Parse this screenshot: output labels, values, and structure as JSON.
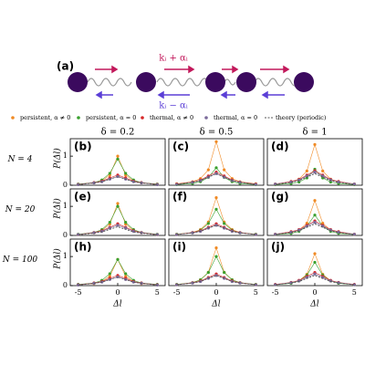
{
  "diagram": {
    "label": "(a)",
    "upper_rate": "kᵢ + αᵢ",
    "lower_rate": "kᵢ − αᵢ"
  },
  "legend": [
    {
      "name": "persistent, α ≠ 0",
      "color": "#f08a24",
      "style": "marker"
    },
    {
      "name": "persistent, α = 0",
      "color": "#3aa02e",
      "style": "marker"
    },
    {
      "name": "thermal, α ≠ 0",
      "color": "#d62728",
      "style": "marker"
    },
    {
      "name": "thermal, α = 0",
      "color": "#7b6a9b",
      "style": "marker"
    },
    {
      "name": "theory (periodic)",
      "color": "#555555",
      "style": "dashed"
    }
  ],
  "chart_data": [
    {
      "type": "line",
      "label": "(b)",
      "title": "δ = 0.2",
      "row_label": "N = 4",
      "ylabel": "P(Δl)",
      "xlim": [
        -6,
        6
      ],
      "ylim": [
        0,
        1.6
      ],
      "yticks": [
        0,
        1
      ],
      "x": [
        -5,
        -3,
        -2,
        -1,
        0,
        1,
        2,
        3,
        5
      ],
      "series": [
        {
          "values": [
            0.03,
            0.08,
            0.15,
            0.35,
            1,
            0.35,
            0.15,
            0.08,
            0.03
          ]
        },
        {
          "values": [
            0.04,
            0.09,
            0.18,
            0.41,
            0.9,
            0.41,
            0.18,
            0.09,
            0.04
          ]
        },
        {
          "values": [
            0.03,
            0.09,
            0.14,
            0.25,
            0.35,
            0.25,
            0.14,
            0.09,
            0.03
          ]
        },
        {
          "values": [
            0.02,
            0.08,
            0.12,
            0.21,
            0.3,
            0.21,
            0.12,
            0.08,
            0.02
          ]
        },
        {
          "values": [
            0.02,
            0.08,
            0.12,
            0.21,
            0.3,
            0.21,
            0.12,
            0.08,
            0.02
          ]
        }
      ]
    },
    {
      "type": "line",
      "label": "(c)",
      "title": "δ = 0.5",
      "xlim": [
        -6,
        6
      ],
      "ylim": [
        0,
        1.6
      ],
      "x": [
        -5,
        -3,
        -2,
        -1,
        0,
        1,
        2,
        3,
        5
      ],
      "series": [
        {
          "values": [
            0.05,
            0.12,
            0.23,
            0.53,
            1.5,
            0.53,
            0.23,
            0.12,
            0.05
          ]
        },
        {
          "values": [
            0.02,
            0.06,
            0.12,
            0.27,
            0.6,
            0.27,
            0.12,
            0.06,
            0.02
          ]
        },
        {
          "values": [
            0.04,
            0.11,
            0.18,
            0.32,
            0.45,
            0.32,
            0.18,
            0.11,
            0.04
          ]
        },
        {
          "values": [
            0.03,
            0.1,
            0.16,
            0.28,
            0.4,
            0.28,
            0.16,
            0.1,
            0.03
          ]
        },
        {
          "values": [
            0.03,
            0.1,
            0.16,
            0.28,
            0.4,
            0.28,
            0.16,
            0.1,
            0.03
          ]
        }
      ]
    },
    {
      "type": "line",
      "label": "(d)",
      "title": "δ = 1",
      "xlim": [
        -6,
        6
      ],
      "ylim": [
        0,
        1.6
      ],
      "x": [
        -5,
        -3,
        -2,
        -1,
        0,
        1,
        2,
        3,
        5
      ],
      "series": [
        {
          "values": [
            0.04,
            0.11,
            0.21,
            0.49,
            1.4,
            0.49,
            0.21,
            0.11,
            0.04
          ]
        },
        {
          "values": [
            0.02,
            0.06,
            0.11,
            0.25,
            0.55,
            0.25,
            0.11,
            0.06,
            0.02
          ]
        },
        {
          "values": [
            0.04,
            0.13,
            0.2,
            0.35,
            0.5,
            0.35,
            0.2,
            0.13,
            0.04
          ]
        },
        {
          "values": [
            0.04,
            0.11,
            0.18,
            0.32,
            0.45,
            0.32,
            0.18,
            0.11,
            0.04
          ]
        },
        {
          "values": [
            0.03,
            0.1,
            0.16,
            0.28,
            0.4,
            0.28,
            0.16,
            0.1,
            0.03
          ]
        }
      ]
    },
    {
      "type": "line",
      "label": "(e)",
      "row_label": "N = 20",
      "ylabel": "P(Δl)",
      "xlim": [
        -6,
        6
      ],
      "ylim": [
        0,
        1.6
      ],
      "yticks": [
        0,
        1
      ],
      "x": [
        -5,
        -3,
        -2,
        -1,
        0,
        1,
        2,
        3,
        5
      ],
      "series": [
        {
          "values": [
            0.03,
            0.09,
            0.17,
            0.39,
            1.1,
            0.39,
            0.17,
            0.09,
            0.03
          ]
        },
        {
          "values": [
            0.04,
            0.1,
            0.2,
            0.45,
            1,
            0.45,
            0.2,
            0.1,
            0.04
          ]
        },
        {
          "values": [
            0.03,
            0.1,
            0.16,
            0.28,
            0.4,
            0.28,
            0.16,
            0.1,
            0.03
          ]
        },
        {
          "values": [
            0.03,
            0.09,
            0.14,
            0.25,
            0.35,
            0.25,
            0.14,
            0.09,
            0.03
          ]
        },
        {
          "values": [
            0.02,
            0.08,
            0.12,
            0.21,
            0.3,
            0.21,
            0.12,
            0.08,
            0.02
          ]
        }
      ]
    },
    {
      "type": "line",
      "label": "(f)",
      "xlim": [
        -6,
        6
      ],
      "ylim": [
        0,
        1.6
      ],
      "x": [
        -5,
        -3,
        -2,
        -1,
        0,
        1,
        2,
        3,
        5
      ],
      "series": [
        {
          "values": [
            0.04,
            0.1,
            0.2,
            0.46,
            1.3,
            0.46,
            0.2,
            0.1,
            0.04
          ]
        },
        {
          "values": [
            0.04,
            0.09,
            0.18,
            0.41,
            0.9,
            0.41,
            0.18,
            0.09,
            0.04
          ]
        },
        {
          "values": [
            0.03,
            0.1,
            0.16,
            0.28,
            0.4,
            0.28,
            0.16,
            0.1,
            0.03
          ]
        },
        {
          "values": [
            0.03,
            0.09,
            0.14,
            0.25,
            0.35,
            0.25,
            0.14,
            0.09,
            0.03
          ]
        },
        {
          "values": [
            0.03,
            0.09,
            0.14,
            0.25,
            0.35,
            0.25,
            0.14,
            0.09,
            0.03
          ]
        }
      ]
    },
    {
      "type": "line",
      "label": "(g)",
      "xlim": [
        -6,
        6
      ],
      "ylim": [
        0,
        1.6
      ],
      "x": [
        -5,
        -3,
        -2,
        -1,
        0,
        1,
        2,
        3,
        5
      ],
      "series": [
        {
          "values": [
            0.04,
            0.1,
            0.18,
            0.42,
            1.2,
            0.42,
            0.18,
            0.1,
            0.04
          ]
        },
        {
          "values": [
            0.03,
            0.07,
            0.14,
            0.32,
            0.7,
            0.32,
            0.14,
            0.07,
            0.03
          ]
        },
        {
          "values": [
            0.04,
            0.13,
            0.2,
            0.35,
            0.5,
            0.35,
            0.2,
            0.13,
            0.04
          ]
        },
        {
          "values": [
            0.04,
            0.11,
            0.18,
            0.32,
            0.45,
            0.32,
            0.18,
            0.11,
            0.04
          ]
        },
        {
          "values": [
            0.03,
            0.1,
            0.16,
            0.28,
            0.4,
            0.28,
            0.16,
            0.1,
            0.03
          ]
        }
      ]
    },
    {
      "type": "line",
      "label": "(h)",
      "row_label": "N = 100",
      "ylabel": "P(Δl)",
      "xlabel": "Δl",
      "xlim": [
        -6,
        6
      ],
      "ylim": [
        0,
        1.6
      ],
      "yticks": [
        0,
        1
      ],
      "xticks": [
        -5,
        0,
        5
      ],
      "x": [
        -5,
        -3,
        -2,
        -1,
        0,
        1,
        2,
        3,
        5
      ],
      "series": [
        {
          "values": [
            0.03,
            0.07,
            0.14,
            0.32,
            0.9,
            0.32,
            0.14,
            0.07,
            0.03
          ]
        },
        {
          "values": [
            0.04,
            0.09,
            0.18,
            0.41,
            0.9,
            0.41,
            0.18,
            0.09,
            0.04
          ]
        },
        {
          "values": [
            0.03,
            0.09,
            0.14,
            0.25,
            0.35,
            0.25,
            0.14,
            0.09,
            0.03
          ]
        },
        {
          "values": [
            0.02,
            0.08,
            0.12,
            0.21,
            0.3,
            0.21,
            0.12,
            0.08,
            0.02
          ]
        },
        {
          "values": [
            0.02,
            0.08,
            0.12,
            0.21,
            0.3,
            0.21,
            0.12,
            0.08,
            0.02
          ]
        }
      ]
    },
    {
      "type": "line",
      "label": "(i)",
      "xlabel": "Δl",
      "xlim": [
        -6,
        6
      ],
      "ylim": [
        0,
        1.6
      ],
      "xticks": [
        -5,
        0,
        5
      ],
      "x": [
        -5,
        -3,
        -2,
        -1,
        0,
        1,
        2,
        3,
        5
      ],
      "series": [
        {
          "values": [
            0.04,
            0.1,
            0.2,
            0.46,
            1.3,
            0.46,
            0.2,
            0.1,
            0.04
          ]
        },
        {
          "values": [
            0.04,
            0.1,
            0.2,
            0.45,
            1,
            0.45,
            0.2,
            0.1,
            0.04
          ]
        },
        {
          "values": [
            0.03,
            0.1,
            0.16,
            0.28,
            0.4,
            0.28,
            0.16,
            0.1,
            0.03
          ]
        },
        {
          "values": [
            0.03,
            0.09,
            0.14,
            0.25,
            0.35,
            0.25,
            0.14,
            0.09,
            0.03
          ]
        },
        {
          "values": [
            0.03,
            0.09,
            0.14,
            0.25,
            0.35,
            0.25,
            0.14,
            0.09,
            0.03
          ]
        }
      ]
    },
    {
      "type": "line",
      "label": "(j)",
      "xlabel": "Δl",
      "xlim": [
        -6,
        6
      ],
      "ylim": [
        0,
        1.6
      ],
      "xticks": [
        -5,
        0,
        5
      ],
      "x": [
        -5,
        -3,
        -2,
        -1,
        0,
        1,
        2,
        3,
        5
      ],
      "series": [
        {
          "values": [
            0.03,
            0.09,
            0.17,
            0.39,
            1.1,
            0.39,
            0.17,
            0.09,
            0.03
          ]
        },
        {
          "values": [
            0.03,
            0.08,
            0.16,
            0.36,
            0.8,
            0.36,
            0.16,
            0.08,
            0.03
          ]
        },
        {
          "values": [
            0.04,
            0.11,
            0.18,
            0.32,
            0.45,
            0.32,
            0.18,
            0.11,
            0.04
          ]
        },
        {
          "values": [
            0.03,
            0.1,
            0.16,
            0.28,
            0.4,
            0.28,
            0.16,
            0.1,
            0.03
          ]
        },
        {
          "values": [
            0.03,
            0.09,
            0.14,
            0.25,
            0.35,
            0.25,
            0.14,
            0.09,
            0.03
          ]
        }
      ]
    }
  ]
}
